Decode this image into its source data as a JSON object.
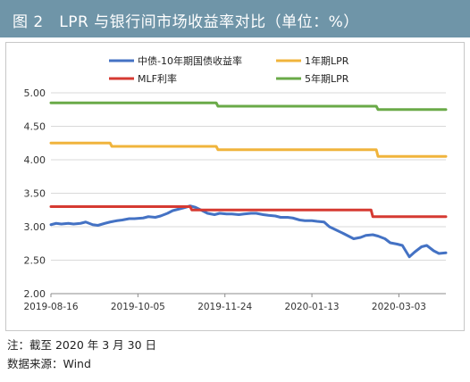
{
  "title": "图 2　LPR 与银行间市场收益率对比（单位：%）",
  "notes": {
    "note": "注：截至 2020 年 3 月 30 日",
    "source": "数据来源：Wind"
  },
  "chart_data": {
    "type": "line",
    "ylim": [
      2.0,
      5.0
    ],
    "yticks": [
      "2.00",
      "2.50",
      "3.00",
      "3.50",
      "4.00",
      "4.50",
      "5.00"
    ],
    "xticks": [
      "2019-08-16",
      "2019-10-05",
      "2019-11-24",
      "2020-01-13",
      "2020-03-03"
    ],
    "x_range": [
      "2019-08-16",
      "2020-03-30"
    ],
    "grid": "horizontal",
    "legend_position": "top",
    "series": [
      {
        "name": "中债-10年期国债收益率",
        "color": "#4472c4",
        "points": [
          [
            "2019-08-16",
            3.03
          ],
          [
            "2019-08-19",
            3.05
          ],
          [
            "2019-08-22",
            3.04
          ],
          [
            "2019-08-26",
            3.05
          ],
          [
            "2019-08-29",
            3.04
          ],
          [
            "2019-09-02",
            3.05
          ],
          [
            "2019-09-05",
            3.07
          ],
          [
            "2019-09-09",
            3.03
          ],
          [
            "2019-09-12",
            3.02
          ],
          [
            "2019-09-16",
            3.05
          ],
          [
            "2019-09-19",
            3.07
          ],
          [
            "2019-09-23",
            3.09
          ],
          [
            "2019-09-26",
            3.1
          ],
          [
            "2019-09-30",
            3.12
          ],
          [
            "2019-10-03",
            3.12
          ],
          [
            "2019-10-08",
            3.13
          ],
          [
            "2019-10-11",
            3.15
          ],
          [
            "2019-10-15",
            3.14
          ],
          [
            "2019-10-18",
            3.16
          ],
          [
            "2019-10-22",
            3.2
          ],
          [
            "2019-10-25",
            3.24
          ],
          [
            "2019-10-28",
            3.26
          ],
          [
            "2019-10-31",
            3.28
          ],
          [
            "2019-11-04",
            3.31
          ],
          [
            "2019-11-07",
            3.29
          ],
          [
            "2019-11-11",
            3.24
          ],
          [
            "2019-11-14",
            3.2
          ],
          [
            "2019-11-18",
            3.18
          ],
          [
            "2019-11-21",
            3.2
          ],
          [
            "2019-11-25",
            3.19
          ],
          [
            "2019-11-28",
            3.19
          ],
          [
            "2019-12-02",
            3.18
          ],
          [
            "2019-12-05",
            3.19
          ],
          [
            "2019-12-09",
            3.2
          ],
          [
            "2019-12-12",
            3.2
          ],
          [
            "2019-12-16",
            3.18
          ],
          [
            "2019-12-19",
            3.17
          ],
          [
            "2019-12-23",
            3.16
          ],
          [
            "2019-12-26",
            3.14
          ],
          [
            "2019-12-30",
            3.14
          ],
          [
            "2020-01-02",
            3.13
          ],
          [
            "2020-01-06",
            3.1
          ],
          [
            "2020-01-09",
            3.09
          ],
          [
            "2020-01-13",
            3.09
          ],
          [
            "2020-01-16",
            3.08
          ],
          [
            "2020-01-20",
            3.07
          ],
          [
            "2020-01-23",
            3.0
          ],
          [
            "2020-01-27",
            2.95
          ],
          [
            "2020-01-31",
            2.9
          ],
          [
            "2020-02-03",
            2.86
          ],
          [
            "2020-02-06",
            2.82
          ],
          [
            "2020-02-10",
            2.84
          ],
          [
            "2020-02-13",
            2.87
          ],
          [
            "2020-02-17",
            2.88
          ],
          [
            "2020-02-20",
            2.86
          ],
          [
            "2020-02-24",
            2.82
          ],
          [
            "2020-02-27",
            2.76
          ],
          [
            "2020-03-02",
            2.74
          ],
          [
            "2020-03-05",
            2.72
          ],
          [
            "2020-03-09",
            2.55
          ],
          [
            "2020-03-12",
            2.62
          ],
          [
            "2020-03-16",
            2.7
          ],
          [
            "2020-03-19",
            2.72
          ],
          [
            "2020-03-23",
            2.64
          ],
          [
            "2020-03-26",
            2.6
          ],
          [
            "2020-03-30",
            2.61
          ]
        ]
      },
      {
        "name": "1年期LPR",
        "color": "#f0b43c",
        "points": [
          [
            "2019-08-16",
            4.25
          ],
          [
            "2019-09-19",
            4.25
          ],
          [
            "2019-09-20",
            4.2
          ],
          [
            "2019-11-19",
            4.2
          ],
          [
            "2019-11-20",
            4.15
          ],
          [
            "2020-02-19",
            4.15
          ],
          [
            "2020-02-20",
            4.05
          ],
          [
            "2020-03-30",
            4.05
          ]
        ]
      },
      {
        "name": "MLF利率",
        "color": "#d63a32",
        "points": [
          [
            "2019-08-16",
            3.3
          ],
          [
            "2019-11-04",
            3.3
          ],
          [
            "2019-11-05",
            3.25
          ],
          [
            "2020-02-16",
            3.25
          ],
          [
            "2020-02-17",
            3.15
          ],
          [
            "2020-03-30",
            3.15
          ]
        ]
      },
      {
        "name": "5年期LPR",
        "color": "#6aaa48",
        "points": [
          [
            "2019-08-16",
            4.85
          ],
          [
            "2019-11-19",
            4.85
          ],
          [
            "2019-11-20",
            4.8
          ],
          [
            "2020-02-19",
            4.8
          ],
          [
            "2020-02-20",
            4.75
          ],
          [
            "2020-03-30",
            4.75
          ]
        ]
      }
    ]
  }
}
